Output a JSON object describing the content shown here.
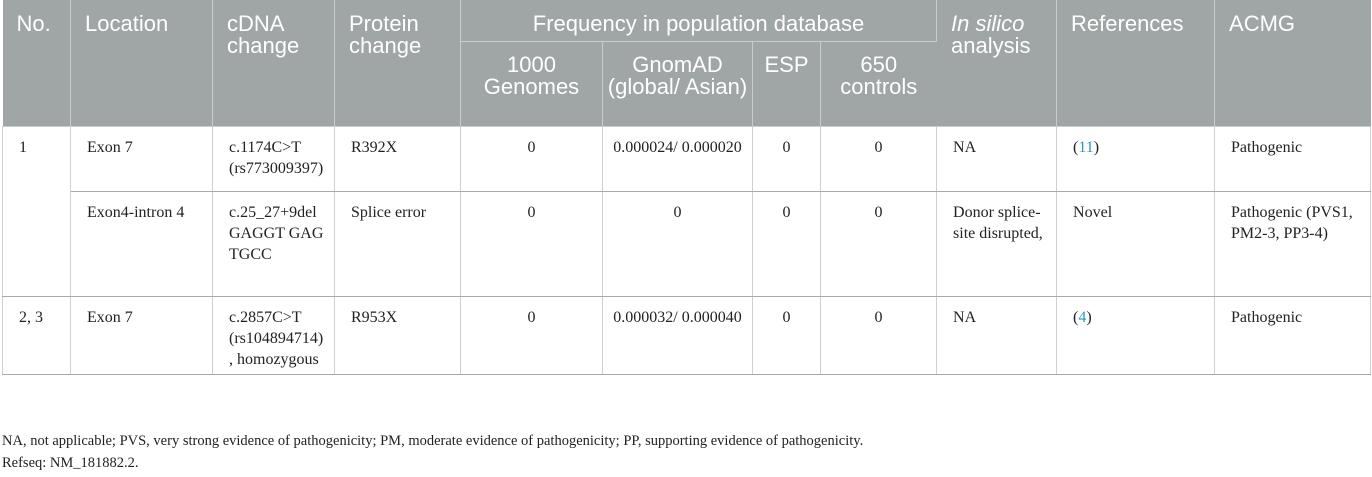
{
  "table": {
    "headers": {
      "no": "No.",
      "location": "Location",
      "cdna": "cDNA change",
      "protein": "Protein change",
      "frequency": "Frequency in population database",
      "genomes": "1000 Genomes",
      "gnomad": "GnomAD (global/ Asian)",
      "esp": "ESP",
      "controls": "650 controls",
      "insilico_italic": "In silico",
      "insilico_rest": "analysis",
      "references": "References",
      "acmg": "ACMG"
    },
    "rows": [
      {
        "no": "1",
        "location": "Exon 7",
        "cdna": "c.1174C>T (rs773009397)",
        "protein": "R392X",
        "genomes": "0",
        "gnomad": "0.000024/ 0.000020",
        "esp": "0",
        "controls": "0",
        "insilico": "NA",
        "ref_open": "(",
        "ref_num": "11",
        "ref_close": ")",
        "acmg": "Pathogenic"
      },
      {
        "location": "Exon4-intron 4",
        "cdna": "c.25_27+9delGAGGT GAGTGCC",
        "protein": "Splice error",
        "genomes": "0",
        "gnomad": "0",
        "esp": "0",
        "controls": "0",
        "insilico": "Donor splice-site disrupted,",
        "references": "Novel",
        "acmg": "Pathogenic (PVS1, PM2-3, PP3-4)"
      },
      {
        "no": "2, 3",
        "location": "Exon 7",
        "cdna": "c.2857C>T (rs104894714), homozygous",
        "protein": "R953X",
        "genomes": "0",
        "gnomad": "0.000032/ 0.000040",
        "esp": "0",
        "controls": "0",
        "insilico": "NA",
        "ref_open": "(",
        "ref_num": "4",
        "ref_close": ")",
        "acmg": "Pathogenic"
      }
    ]
  },
  "footnotes": {
    "abbreviations": "NA, not applicable; PVS, very strong evidence of pathogenicity; PM, moderate evidence of pathogenicity; PP, supporting evidence of pathogenicity.",
    "refseq": "Refseq: NM_181882.2."
  },
  "colors": {
    "header_bg": "#a0a5a5",
    "header_text": "#ffffff",
    "link": "#2a9bb5"
  }
}
